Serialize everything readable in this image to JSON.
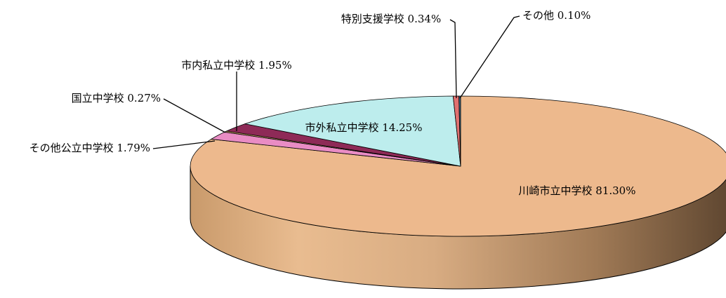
{
  "chart_data": {
    "type": "pie",
    "style": "3d",
    "title": "",
    "legend": "none",
    "slices": [
      {
        "name": "川崎市立中学校",
        "value": 81.3,
        "label": "川崎市立中学校 81.30%",
        "color": "#EDB98D"
      },
      {
        "name": "その他公立中学校",
        "value": 1.79,
        "label": "その他公立中学校 1.79%",
        "color": "#E98CC4"
      },
      {
        "name": "国立中学校",
        "value": 0.27,
        "label": "国立中学校 0.27%",
        "color": "#C9A46A"
      },
      {
        "name": "市内私立中学校",
        "value": 1.95,
        "label": "市内私立中学校 1.95%",
        "color": "#8E2A57"
      },
      {
        "name": "市外私立中学校",
        "value": 14.25,
        "label": "市外私立中学校 14.25%",
        "color": "#BDEDED"
      },
      {
        "name": "特別支援学校",
        "value": 0.34,
        "label": "特別支援学校 0.34%",
        "color": "#E07070"
      },
      {
        "name": "その他",
        "value": 0.1,
        "label": "その他 0.10%",
        "color": "#3C6E8C"
      }
    ]
  }
}
